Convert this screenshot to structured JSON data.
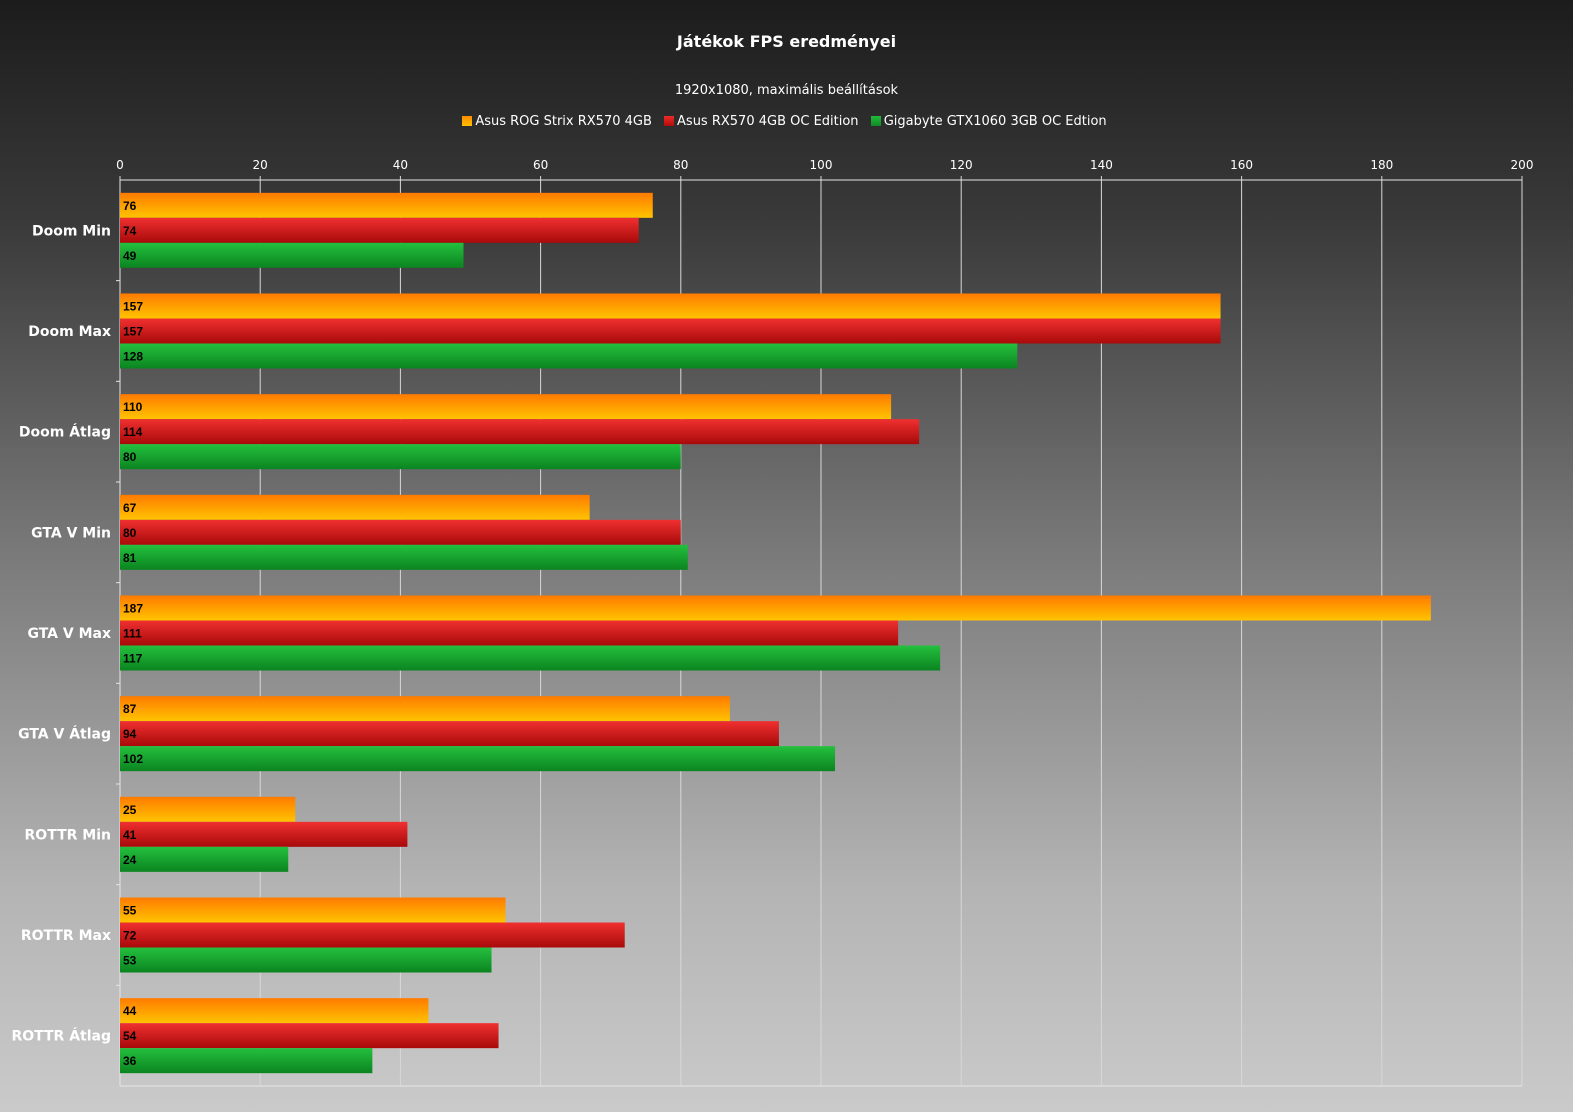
{
  "chart_data": {
    "type": "bar",
    "orientation": "horizontal",
    "title": "Játékok FPS eredményei",
    "subtitle": "1920x1080, maximális beállítások",
    "categories": [
      "Doom Min",
      "Doom Max",
      "Doom Átlag",
      "GTA V Min",
      "GTA V Max",
      "GTA V Átlag",
      "ROTTR Min",
      "ROTTR Max",
      "ROTTR Átlag"
    ],
    "series": [
      {
        "name": "Asus ROG Strix RX570 4GB",
        "color": "#ff9a00",
        "values": [
          76,
          157,
          110,
          67,
          187,
          87,
          25,
          55,
          44
        ]
      },
      {
        "name": "Asus RX570 4GB OC Edition",
        "color": "#dd1a1a",
        "values": [
          74,
          157,
          114,
          80,
          111,
          94,
          41,
          72,
          54
        ]
      },
      {
        "name": "Gigabyte GTX1060 3GB OC Edtion",
        "color": "#1aa832",
        "values": [
          49,
          128,
          80,
          81,
          117,
          102,
          24,
          53,
          36
        ]
      }
    ],
    "xlim": [
      0,
      200
    ],
    "xticks": [
      0,
      20,
      40,
      60,
      80,
      100,
      120,
      140,
      160,
      180,
      200
    ],
    "grid": true,
    "legend_position": "top",
    "data_labels": true,
    "axis_position": "top"
  }
}
